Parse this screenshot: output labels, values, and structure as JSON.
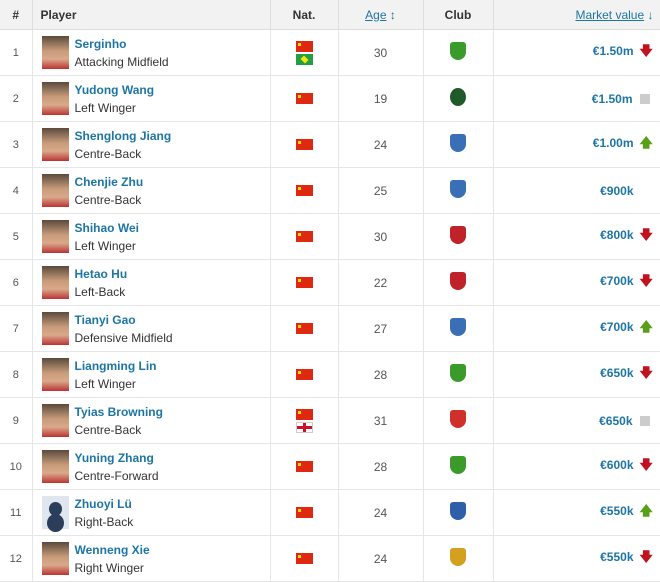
{
  "header": {
    "num": "#",
    "player": "Player",
    "nat": "Nat.",
    "age": "Age",
    "age_sort_icon": "↕",
    "club": "Club",
    "value": "Market value",
    "value_sort_icon": "↓"
  },
  "colors": {
    "link": "#1d75a3",
    "down": "#c1121f",
    "up": "#5a9e1a",
    "same": "#cccccc"
  },
  "rows": [
    {
      "num": "1",
      "name": "Serginho",
      "pos": "Attacking Midfield",
      "flags": [
        "china",
        "brazil"
      ],
      "age": "30",
      "club_color": "#3a9a2a",
      "value": "€1.50m",
      "trend": "down"
    },
    {
      "num": "2",
      "name": "Yudong Wang",
      "pos": "Left Winger",
      "flags": [
        "china"
      ],
      "age": "19",
      "club_color": "#1f5a2a",
      "value": "€1.50m",
      "trend": "same"
    },
    {
      "num": "3",
      "name": "Shenglong Jiang",
      "pos": "Centre-Back",
      "flags": [
        "china"
      ],
      "age": "24",
      "club_color": "#3a6fb5",
      "value": "€1.00m",
      "trend": "up"
    },
    {
      "num": "4",
      "name": "Chenjie Zhu",
      "pos": "Centre-Back",
      "flags": [
        "china"
      ],
      "age": "25",
      "club_color": "#3a6fb5",
      "value": "€900k",
      "trend": "none"
    },
    {
      "num": "5",
      "name": "Shihao Wei",
      "pos": "Left Winger",
      "flags": [
        "china"
      ],
      "age": "30",
      "club_color": "#c0222a",
      "value": "€800k",
      "trend": "down"
    },
    {
      "num": "6",
      "name": "Hetao Hu",
      "pos": "Left-Back",
      "flags": [
        "china"
      ],
      "age": "22",
      "club_color": "#c0222a",
      "value": "€700k",
      "trend": "down"
    },
    {
      "num": "7",
      "name": "Tianyi Gao",
      "pos": "Defensive Midfield",
      "flags": [
        "china"
      ],
      "age": "27",
      "club_color": "#3a6fb5",
      "value": "€700k",
      "trend": "up"
    },
    {
      "num": "8",
      "name": "Liangming Lin",
      "pos": "Left Winger",
      "flags": [
        "china"
      ],
      "age": "28",
      "club_color": "#3a9a2a",
      "value": "€650k",
      "trend": "down"
    },
    {
      "num": "9",
      "name": "Tyias Browning",
      "pos": "Centre-Back",
      "flags": [
        "china",
        "england"
      ],
      "age": "31",
      "club_color": "#d0302a",
      "value": "€650k",
      "trend": "same"
    },
    {
      "num": "10",
      "name": "Yuning Zhang",
      "pos": "Centre-Forward",
      "flags": [
        "china"
      ],
      "age": "28",
      "club_color": "#3a9a2a",
      "value": "€600k",
      "trend": "down"
    },
    {
      "num": "11",
      "name": "Zhuoyi Lü",
      "pos": "Right-Back",
      "flags": [
        "china"
      ],
      "age": "24",
      "club_color": "#2f5fa8",
      "value": "€550k",
      "trend": "up"
    },
    {
      "num": "12",
      "name": "Wenneng Xie",
      "pos": "Right Winger",
      "flags": [
        "china"
      ],
      "age": "24",
      "club_color": "#d4a020",
      "value": "€550k",
      "trend": "down"
    }
  ]
}
